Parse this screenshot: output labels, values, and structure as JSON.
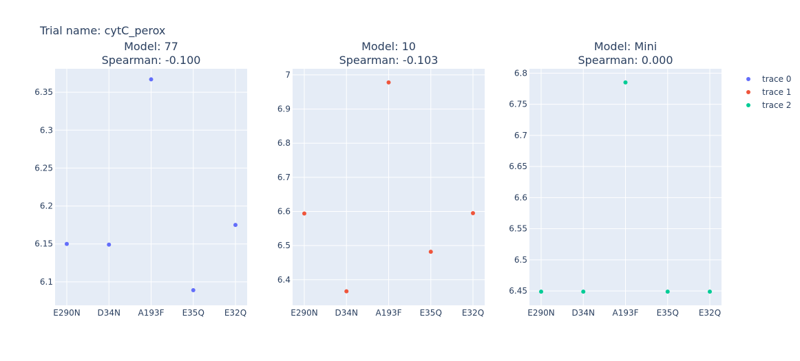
{
  "figure": {
    "title": "Trial name: cytC_perox"
  },
  "colors": {
    "plot_bg": "#e5ecf6",
    "grid": "#ffffff",
    "text": "#2a3f5f",
    "series": [
      "#636efa",
      "#ef553b",
      "#00cc96"
    ]
  },
  "chart_data": [
    {
      "type": "scatter",
      "title": "Model: 77",
      "subtitle": "Spearman: -0.100",
      "series_name": "trace 0",
      "categories": [
        "E290N",
        "D34N",
        "A193F",
        "E35Q",
        "E32Q"
      ],
      "values": [
        6.15,
        6.149,
        6.367,
        6.089,
        6.175
      ],
      "ylim": [
        6.069,
        6.381
      ],
      "yticks": [
        6.1,
        6.15,
        6.2,
        6.25,
        6.3,
        6.35
      ],
      "ytick_labels": [
        "6.1",
        "6.15",
        "6.2",
        "6.25",
        "6.3",
        "6.35"
      ],
      "grid": true
    },
    {
      "type": "scatter",
      "title": "Model: 10",
      "subtitle": "Spearman: -0.103",
      "series_name": "trace 1",
      "categories": [
        "E290N",
        "D34N",
        "A193F",
        "E35Q",
        "E32Q"
      ],
      "values": [
        6.594,
        6.366,
        6.978,
        6.482,
        6.595
      ],
      "ylim": [
        6.325,
        7.018
      ],
      "yticks": [
        6.4,
        6.5,
        6.6,
        6.7,
        6.8,
        6.9,
        7.0
      ],
      "ytick_labels": [
        "6.4",
        "6.5",
        "6.6",
        "6.7",
        "6.8",
        "6.9",
        "7"
      ],
      "grid": true
    },
    {
      "type": "scatter",
      "title": "Model: Mini",
      "subtitle": "Spearman: 0.000",
      "series_name": "trace 2",
      "categories": [
        "E290N",
        "D34N",
        "A193F",
        "E35Q",
        "E32Q"
      ],
      "values": [
        6.449,
        6.449,
        6.785,
        6.449,
        6.449
      ],
      "ylim": [
        6.427,
        6.807
      ],
      "yticks": [
        6.45,
        6.5,
        6.55,
        6.6,
        6.65,
        6.7,
        6.75,
        6.8
      ],
      "ytick_labels": [
        "6.45",
        "6.5",
        "6.55",
        "6.6",
        "6.65",
        "6.7",
        "6.75",
        "6.8"
      ],
      "grid": true
    }
  ],
  "legend": {
    "placement": "top-right",
    "items": [
      {
        "label": "trace 0",
        "color": "#636efa"
      },
      {
        "label": "trace 1",
        "color": "#ef553b"
      },
      {
        "label": "trace 2",
        "color": "#00cc96"
      }
    ]
  }
}
